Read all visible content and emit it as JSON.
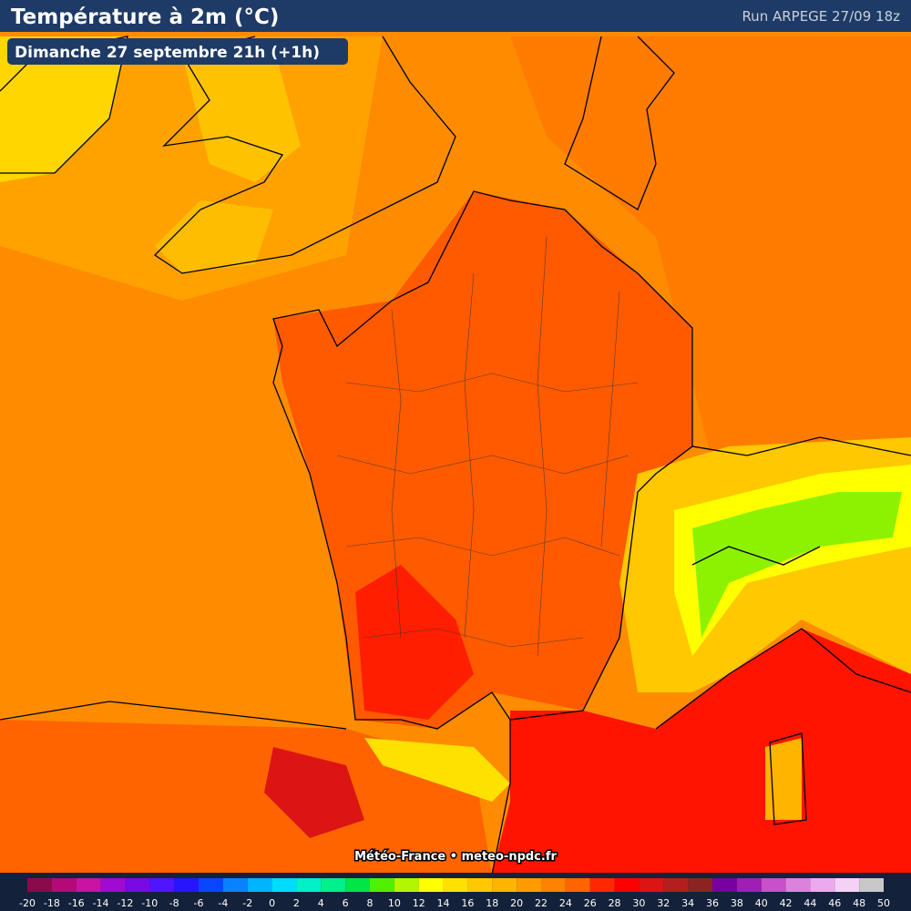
{
  "header": {
    "title": "Température à 2m (°C)",
    "run": "Run ARPEGE 27/09 18z"
  },
  "date_label": "Dimanche 27 septembre 21h (+1h)",
  "credit": "Météo-France • meteo-npdc.fr",
  "legend": {
    "ticks": [
      -20,
      -18,
      -16,
      -14,
      -12,
      -10,
      -8,
      -6,
      -4,
      -2,
      0,
      2,
      4,
      6,
      8,
      10,
      12,
      14,
      16,
      18,
      20,
      22,
      24,
      26,
      28,
      30,
      32,
      34,
      36,
      38,
      40,
      42,
      44,
      46,
      48,
      50
    ],
    "colors": [
      "#8b0a4b",
      "#b40a78",
      "#c814a0",
      "#a00ad2",
      "#780ae6",
      "#5014ff",
      "#2814ff",
      "#0a46ff",
      "#0a82ff",
      "#00b4ff",
      "#00dcff",
      "#00f0c8",
      "#00f08c",
      "#00e646",
      "#50f000",
      "#b4f500",
      "#ffff00",
      "#ffe100",
      "#ffc800",
      "#ffb400",
      "#ff9b00",
      "#ff8200",
      "#ff6400",
      "#ff2800",
      "#ff0000",
      "#dc1414",
      "#b41e1e",
      "#8c2323",
      "#7800a0",
      "#a01eb4",
      "#c850c8",
      "#dc82dc",
      "#ebaaeb",
      "#f5d2f5",
      "#c8c8c8"
    ]
  }
}
